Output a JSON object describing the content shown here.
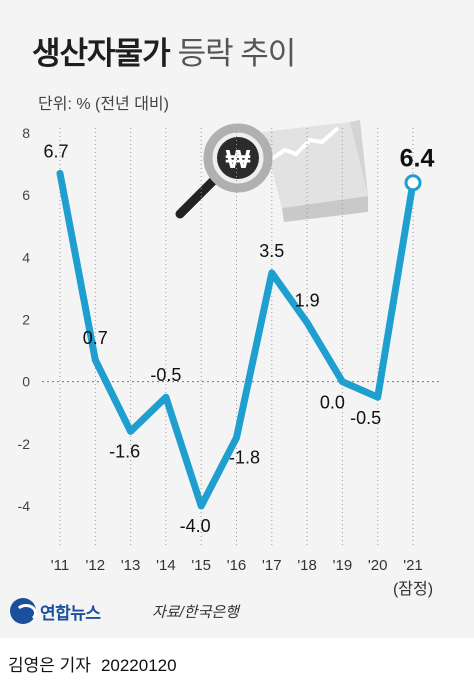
{
  "header": {
    "title_bold": "생산자물가",
    "title_light": "등락 추이",
    "unit": "단위: % (전년 대비)"
  },
  "footer": {
    "logo": "연합뉴스",
    "source": "자료/한국은행",
    "reporter": "김영은 기자",
    "date": "20220120"
  },
  "illustration": {
    "icon": "won-magnifier-chart-icon",
    "symbol": "₩"
  },
  "colors": {
    "line": "#1e9fcf",
    "panel": "#f4f4f4",
    "grid": "#9a9a9a"
  },
  "chart_data": {
    "type": "line",
    "title": "생산자물가 등락 추이",
    "ylabel": "단위: % (전년 대비)",
    "x": [
      "'11",
      "'12",
      "'13",
      "'14",
      "'15",
      "'16",
      "'17",
      "'18",
      "'19",
      "'20",
      "'21"
    ],
    "x_note": "(잠정)",
    "values": [
      6.7,
      0.7,
      -1.6,
      -0.5,
      -4.0,
      -1.8,
      3.5,
      1.9,
      0.0,
      -0.5,
      6.4
    ],
    "value_labels": [
      "6.7",
      "0.7",
      "-1.6",
      "-0.5",
      "-4.0",
      "-1.8",
      "3.5",
      "1.9",
      "0.0",
      "-0.5",
      "6.4"
    ],
    "yticks": [
      "8",
      "6",
      "4",
      "2",
      "0",
      "-2",
      "-4"
    ],
    "ylim": [
      -4,
      8
    ],
    "grid": false,
    "legend": "none"
  }
}
